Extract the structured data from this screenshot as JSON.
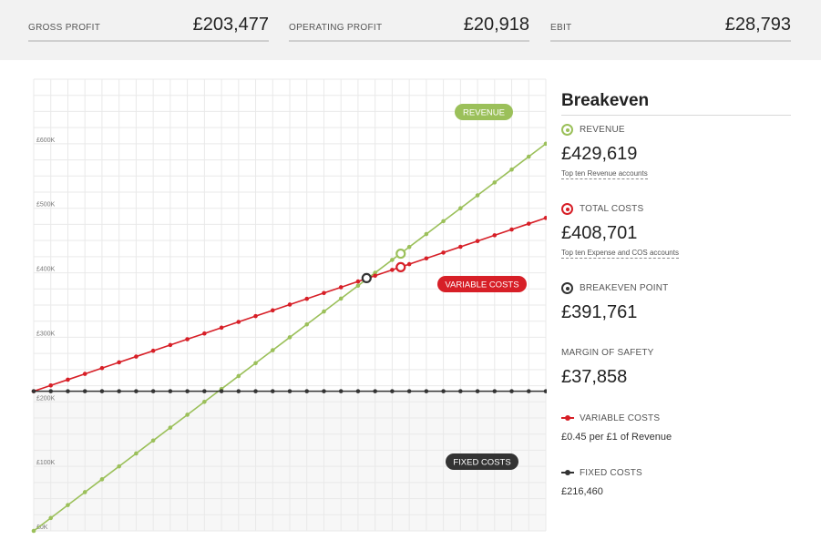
{
  "metrics": {
    "gross_profit": {
      "label": "GROSS PROFIT",
      "value": "£203,477"
    },
    "operating_profit": {
      "label": "OPERATING PROFIT",
      "value": "£20,918"
    },
    "ebit": {
      "label": "EBIT",
      "value": "£28,793"
    }
  },
  "sidebar": {
    "title": "Breakeven",
    "revenue": {
      "label": "REVENUE",
      "value": "£429,619",
      "link": "Top ten Revenue accounts"
    },
    "total_costs": {
      "label": "TOTAL COSTS",
      "value": "£408,701",
      "link": "Top ten Expense and COS accounts"
    },
    "breakeven_point": {
      "label": "BREAKEVEN POINT",
      "value": "£391,761"
    },
    "margin_of_safety": {
      "label": "MARGIN OF SAFETY",
      "value": "£37,858"
    },
    "variable_costs": {
      "label": "VARIABLE COSTS",
      "value": "£0.45 per £1 of Revenue"
    },
    "fixed_costs": {
      "label": "FIXED COSTS",
      "value": "£216,460"
    }
  },
  "colors": {
    "revenue": "#9bc05a",
    "variable_costs": "#d71f27",
    "fixed_costs": "#333333",
    "grid": "#e9e9e9"
  },
  "chart_data": {
    "type": "line",
    "ylim": [
      0,
      700000
    ],
    "yticks": [
      {
        "value": 0,
        "label": "£0K"
      },
      {
        "value": 100000,
        "label": "£100K"
      },
      {
        "value": 200000,
        "label": "£200K"
      },
      {
        "value": 300000,
        "label": "£300K"
      },
      {
        "value": 400000,
        "label": "£400K"
      },
      {
        "value": 500000,
        "label": "£500K"
      },
      {
        "value": 600000,
        "label": "£600K"
      }
    ],
    "points": 31,
    "series": [
      {
        "key": "revenue",
        "label": "REVENUE",
        "start": 0,
        "end": 600000
      },
      {
        "key": "variable_costs",
        "label": "VARIABLE COSTS",
        "start": 216460,
        "end": 485000
      },
      {
        "key": "fixed_costs",
        "label": "FIXED COSTS",
        "start": 216460,
        "end": 216460
      }
    ],
    "markers": [
      {
        "key": "breakeven_point",
        "index": 19.5,
        "value": 391761
      },
      {
        "key": "revenue",
        "index": 21.5,
        "value": 429619
      },
      {
        "key": "total_costs",
        "index": 21.5,
        "value": 408701
      }
    ]
  }
}
